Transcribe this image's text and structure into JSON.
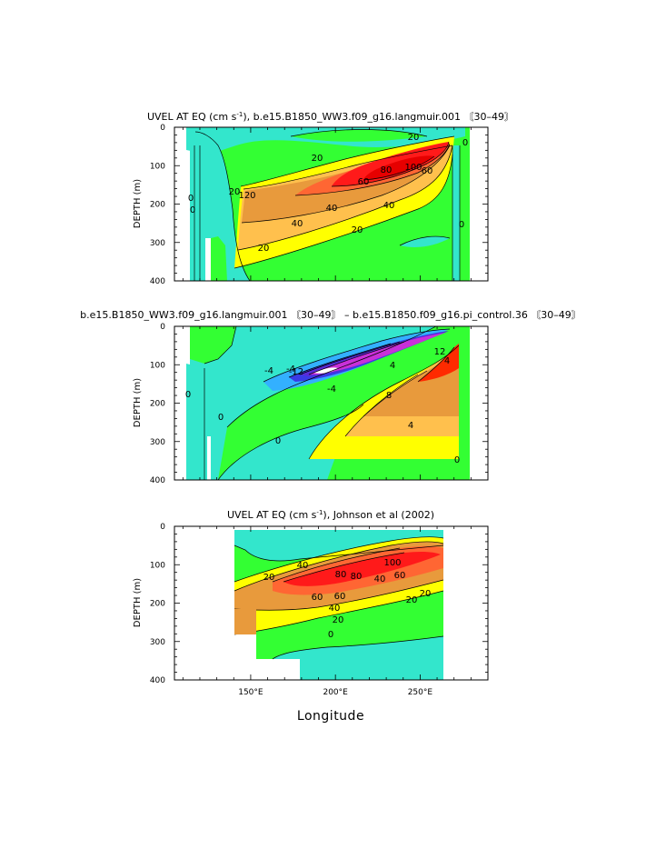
{
  "chart_data": [
    {
      "type": "contour",
      "title": "UVEL AT EQ (cm s-1), b.e15.B1850_WW3.f09_g16.langmuir.001 [30-49]",
      "title_parts": [
        "UVEL AT EQ (cm s",
        "-1",
        "), b.e15.B1850_WW3.f09_g16.langmuir.001 〘30–49〙"
      ],
      "ylabel": "DEPTH (m)",
      "xlim": [
        105,
        290
      ],
      "ylim": [
        400,
        0
      ],
      "yticks": [
        "0",
        "100",
        "200",
        "300",
        "400"
      ],
      "contour_labels": [
        "0",
        "0",
        "20",
        "20",
        "20",
        "20",
        "20",
        "40",
        "40",
        "40",
        "60",
        "60",
        "80",
        "100",
        "120",
        "0",
        "0"
      ],
      "core": {
        "lon": 240,
        "depth": 110,
        "max_value": 120
      },
      "colors": {
        "cyan": "#33e6cc",
        "green": "#33ff33",
        "yellow": "#ffff00",
        "orange": "#e89a3c",
        "red": "#ff1a1a"
      }
    },
    {
      "type": "contour",
      "title": "b.e15.B1850_WW3.f09_g16.langmuir.001 [30-49] - b.e15.B1850.f09_g16.pi_control.36 [30-49]",
      "title_text": "b.e15.B1850_WW3.f09_g16.langmuir.001 〘30–49〙 – b.e15.B1850.f09_g16.pi_control.36 〘30–49〙",
      "ylabel": "DEPTH (m)",
      "xlim": [
        105,
        290
      ],
      "ylim": [
        400,
        0
      ],
      "yticks": [
        "0",
        "100",
        "200",
        "300",
        "400"
      ],
      "contour_labels": [
        "-4",
        "-4",
        "-12",
        "-4",
        "0",
        "0",
        "0",
        "4",
        "8",
        "4",
        "12",
        "4",
        "0"
      ],
      "colors": {
        "magenta": "#c830d8",
        "blue": "#3a3ae6",
        "lightblue": "#33b0ff",
        "cyan": "#33e6cc",
        "green": "#33ff33",
        "yellow": "#ffff00",
        "orange": "#e89a3c",
        "red": "#ff2a00"
      }
    },
    {
      "type": "contour",
      "title": "UVEL AT EQ (cm s-1), Johnson et al (2002)",
      "title_parts": [
        "UVEL AT EQ (cm s",
        "-1",
        "), Johnson et al (2002)"
      ],
      "ylabel": "DEPTH (m)",
      "xlabel": "Longitude",
      "xlim": [
        105,
        290
      ],
      "ylim": [
        400,
        0
      ],
      "xticks": [
        "150°E",
        "200°E",
        "250°E"
      ],
      "yticks": [
        "0",
        "100",
        "200",
        "300",
        "400"
      ],
      "contour_labels": [
        "20",
        "40",
        "60",
        "80",
        "100",
        "60",
        "40",
        "20",
        "0",
        "80",
        "60",
        "20",
        "20",
        "40"
      ],
      "core": {
        "lon": 235,
        "depth": 110,
        "max_value": 100
      },
      "colors": {
        "cyan": "#33e6cc",
        "green": "#33ff33",
        "yellow": "#ffff00",
        "orange": "#e89a3c",
        "red": "#ff1a1a"
      }
    }
  ]
}
